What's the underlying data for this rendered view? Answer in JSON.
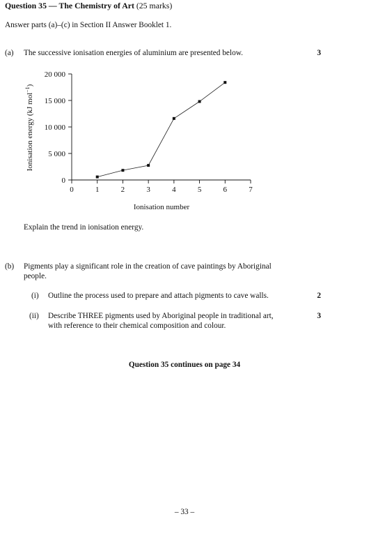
{
  "question": {
    "heading": "Question 35 — The Chemistry of Art",
    "marks_total": "(25 marks)",
    "instruction": "Answer parts (a)–(c) in Section II Answer Booklet 1."
  },
  "part_a": {
    "label": "(a)",
    "text": "The successive ionisation energies of aluminium are presented below.",
    "marks": "3",
    "prompt": "Explain the trend in ionisation energy."
  },
  "chart_data": {
    "type": "line",
    "x": [
      1,
      2,
      3,
      4,
      5,
      6
    ],
    "y": [
      580,
      1820,
      2750,
      11600,
      14800,
      18400
    ],
    "xlabel": "Ionisation number",
    "ylabel": "Ionisation energy (kJ mol",
    "ylabel_sup": "−1",
    "ylabel_close": ")",
    "xlim": [
      0,
      7
    ],
    "ylim": [
      0,
      20000
    ],
    "xticks": [
      "0",
      "1",
      "2",
      "3",
      "4",
      "5",
      "6",
      "7"
    ],
    "yticks": [
      "0",
      "5 000",
      "10 000",
      "15 000",
      "20 000"
    ],
    "grid": false
  },
  "part_b": {
    "label": "(b)",
    "text_line1": "Pigments play a significant role in the creation of cave paintings by Aboriginal",
    "text_line2": "people.",
    "sub_i": {
      "label": "(i)",
      "text": "Outline the process used to prepare and attach pigments to cave walls.",
      "marks": "2"
    },
    "sub_ii": {
      "label": "(ii)",
      "text_line1": "Describe THREE pigments used by Aboriginal people in traditional art,",
      "text_line2": "with reference to their chemical composition and colour.",
      "marks": "3"
    }
  },
  "continues": "Question 35 continues on page 34",
  "page_number": "– 33 –"
}
